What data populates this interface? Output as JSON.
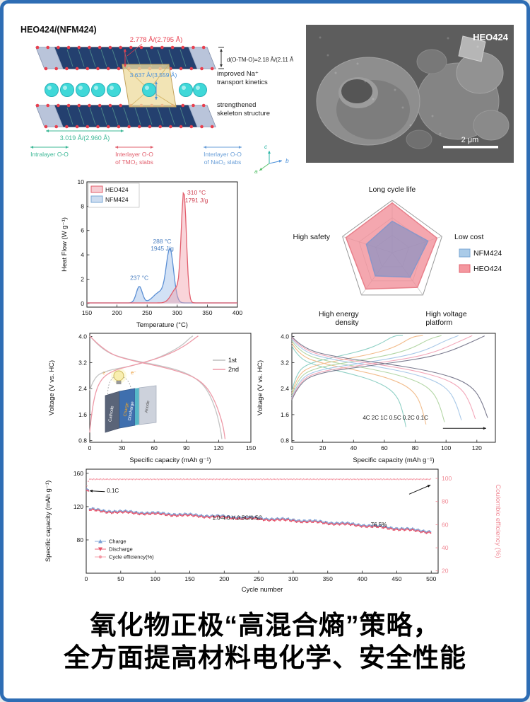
{
  "page": {
    "border_color": "#2e6db4",
    "background": "#ffffff"
  },
  "structure_panel": {
    "title": "HEO424/(NFM424)",
    "labels": {
      "interlayer_tmo2": "2.778 Å/(2.795 Å)",
      "d_otmo": "d(O-TM-O)=2.18 Å/(2.11 Å)",
      "interlayer_nao2": "3.637 Å/(3.559 Å)",
      "intralayer": "3.019 Å/(2.960 Å)"
    },
    "notes": {
      "transport1": "improved Na⁺",
      "transport2": "transport kinetics",
      "skeleton1": "strengthened",
      "skeleton2": "skeleton structure"
    },
    "legend": [
      {
        "line1": "Intralayer O-O",
        "line2": "",
        "color": "#3cb896"
      },
      {
        "line1": "Interlayer O-O",
        "line2": "of TMO₂ slabs",
        "color": "#e2606e"
      },
      {
        "line1": "Interlayer O-O",
        "line2": "of NaO₂ slabs",
        "color": "#6a9fd8"
      }
    ],
    "axes": {
      "c": "c",
      "b": "b",
      "a": "a"
    }
  },
  "sem_panel": {
    "label": "HEO424",
    "scale_bar": "2 μm"
  },
  "voltage_inset": {
    "cathode": "Cathode",
    "anode": "Anode",
    "charge": "Charge",
    "discharge": "Discharge",
    "electron": "e⁻"
  },
  "caption": {
    "line1": "氧化物正极“高混合熵”策略，",
    "line2": "全方面提高材料电化学、安全性能"
  },
  "chart_data": [
    {
      "id": "dsc",
      "type": "line",
      "xlabel": "Temperature (°C)",
      "ylabel": "Heat Flow (W g⁻¹)",
      "xlim": [
        150,
        400
      ],
      "ylim": [
        -0.3,
        10
      ],
      "xticks": [
        150,
        200,
        250,
        300,
        350,
        400
      ],
      "yticks": [
        0,
        2,
        4,
        6,
        8,
        10
      ],
      "legend": [
        {
          "label": "HEO424",
          "fill": "#f6cdd3",
          "stroke": "#e2606e"
        },
        {
          "label": "NFM424",
          "fill": "#ccdcf0",
          "stroke": "#7aa7d4"
        }
      ],
      "series": [
        {
          "name": "NFM424",
          "color": "#5b8fd4",
          "fill": "rgba(165,195,235,0.5)",
          "baseline": 0.05,
          "peaks": [
            {
              "c": 237,
              "h": 1.35,
              "w": 7
            },
            {
              "c": 272,
              "h": 0.9,
              "w": 16
            },
            {
              "c": 288,
              "h": 4.15,
              "w": 8.5
            }
          ]
        },
        {
          "name": "HEO424",
          "color": "#e2606e",
          "fill": "rgba(242,160,170,0.45)",
          "baseline": 0.05,
          "peaks": [
            {
              "c": 299,
              "h": 1.2,
              "w": 12
            },
            {
              "c": 311,
              "h": 8.75,
              "w": 6
            }
          ]
        }
      ],
      "annotations": [
        {
          "text": "237 °C",
          "x": 237,
          "y": 1.95,
          "color": "#4a7fc1",
          "size": 8.5
        },
        {
          "text": "288 °C",
          "x": 275,
          "y": 4.95,
          "color": "#4a7fc1",
          "size": 8.5
        },
        {
          "text": "1945 J/g",
          "x": 275,
          "y": 4.35,
          "color": "#4a7fc1",
          "size": 8.5
        },
        {
          "text": "310 °C",
          "x": 332,
          "y": 8.95,
          "color": "#cf4050",
          "size": 8.5
        },
        {
          "text": "1791 J/g",
          "x": 332,
          "y": 8.3,
          "color": "#cf4050",
          "size": 8.5
        }
      ]
    },
    {
      "id": "radar",
      "type": "radar",
      "levels": 3,
      "axes": [
        {
          "lines": [
            "Long cycle life"
          ]
        },
        {
          "lines": [
            "Low cost"
          ]
        },
        {
          "lines": [
            "High voltage",
            "platform"
          ]
        },
        {
          "lines": [
            "High energy",
            "density"
          ]
        },
        {
          "lines": [
            "High safety"
          ]
        }
      ],
      "series": [
        {
          "name": "HEO424",
          "values": [
            0.95,
            0.9,
            0.82,
            0.86,
            0.93
          ],
          "stroke": "#e87f8a",
          "fill": "rgba(240,138,148,0.75)"
        },
        {
          "name": "NFM424",
          "values": [
            0.6,
            0.72,
            0.58,
            0.55,
            0.52
          ],
          "stroke": "#8a96c8",
          "fill": "rgba(135,145,195,0.7)"
        }
      ],
      "legend": [
        {
          "label": "NFM424",
          "fill": "#aacbe8",
          "stroke": "#7aa7d4"
        },
        {
          "label": "HEO424",
          "fill": "#f4979f",
          "stroke": "#e2606e"
        }
      ]
    },
    {
      "id": "voltage12",
      "type": "line",
      "xlabel": "Specific capacity (mAh g⁻¹)",
      "ylabel": "Voltage (V vs. HC)",
      "xlim": [
        0,
        150
      ],
      "ylim": [
        0.75,
        4.1
      ],
      "xticks": [
        0,
        30,
        60,
        90,
        120,
        150
      ],
      "yticks": [
        0.8,
        1.6,
        2.4,
        3.2,
        4.0
      ],
      "ytick_labels": [
        "0.8",
        "1.6",
        "2.4",
        "3.2",
        "4.0"
      ],
      "legend_lines": [
        {
          "label": "1st",
          "color": "#bdbdbd"
        },
        {
          "label": "2nd",
          "color": "#ee9aa8"
        }
      ],
      "series": [
        {
          "name": "1st charge",
          "color": "#c4c4c4",
          "smooth": true,
          "points": [
            [
              0,
              2.35
            ],
            [
              4,
              2.75
            ],
            [
              15,
              2.95
            ],
            [
              40,
              3.1
            ],
            [
              65,
              3.35
            ],
            [
              85,
              3.7
            ],
            [
              93,
              3.95
            ],
            [
              96,
              4.02
            ]
          ]
        },
        {
          "name": "1st discharge",
          "color": "#c4c4c4",
          "smooth": true,
          "points": [
            [
              0,
              4.02
            ],
            [
              12,
              3.55
            ],
            [
              35,
              3.3
            ],
            [
              60,
              3.15
            ],
            [
              85,
              2.95
            ],
            [
              100,
              2.7
            ],
            [
              110,
              2.35
            ],
            [
              118,
              1.7
            ],
            [
              122,
              1.1
            ],
            [
              123,
              0.85
            ]
          ]
        },
        {
          "name": "2nd charge",
          "color": "#ee9aa8",
          "smooth": true,
          "points": [
            [
              0,
              1.05
            ],
            [
              2,
              1.8
            ],
            [
              8,
              2.6
            ],
            [
              20,
              2.95
            ],
            [
              45,
              3.15
            ],
            [
              70,
              3.4
            ],
            [
              88,
              3.7
            ],
            [
              98,
              3.95
            ],
            [
              101,
              4.02
            ]
          ]
        },
        {
          "name": "2nd discharge",
          "color": "#ee9aa8",
          "smooth": true,
          "points": [
            [
              0,
              4.02
            ],
            [
              15,
              3.5
            ],
            [
              40,
              3.25
            ],
            [
              70,
              3.05
            ],
            [
              95,
              2.8
            ],
            [
              108,
              2.5
            ],
            [
              117,
              2.0
            ],
            [
              124,
              1.3
            ],
            [
              126,
              0.85
            ]
          ]
        }
      ]
    },
    {
      "id": "rate",
      "type": "line",
      "xlabel": "Specific capacity (mAh g⁻¹)",
      "ylabel": "Voltage (V vs. HC)",
      "xlim": [
        0,
        132
      ],
      "ylim": [
        0.75,
        4.1
      ],
      "xticks": [
        0,
        20,
        40,
        60,
        80,
        100,
        120
      ],
      "yticks": [
        0.8,
        1.6,
        2.4,
        3.2,
        4.0
      ],
      "ytick_labels": [
        "0.8",
        "1.6",
        "2.4",
        "3.2",
        "4.0"
      ],
      "curve_templates": {
        "charge": [
          [
            0,
            2.05
          ],
          [
            0.04,
            2.6
          ],
          [
            0.15,
            2.9
          ],
          [
            0.4,
            3.1
          ],
          [
            0.65,
            3.3
          ],
          [
            0.8,
            3.5
          ],
          [
            0.92,
            3.8
          ],
          [
            1,
            4.02
          ]
        ],
        "discharge": [
          [
            0,
            4.0
          ],
          [
            0.06,
            3.6
          ],
          [
            0.25,
            3.35
          ],
          [
            0.5,
            3.15
          ],
          [
            0.7,
            2.95
          ],
          [
            0.85,
            2.7
          ],
          [
            0.93,
            2.4
          ],
          [
            0.97,
            2.0
          ],
          [
            1,
            1.5
          ]
        ]
      },
      "rates": [
        {
          "name": "4C",
          "color": "#8fd0c5",
          "discharge_cap": 74,
          "charge_cap": 72,
          "voff": 0.28
        },
        {
          "name": "2C",
          "color": "#f2bd8d",
          "discharge_cap": 87,
          "charge_cap": 85,
          "voff": 0.2
        },
        {
          "name": "1C",
          "color": "#b3d6a5",
          "discharge_cap": 99,
          "charge_cap": 97,
          "voff": 0.13
        },
        {
          "name": "0.5C",
          "color": "#a9c9e8",
          "discharge_cap": 110,
          "charge_cap": 108,
          "voff": 0.07
        },
        {
          "name": "0.2C",
          "color": "#f3a8ba",
          "discharge_cap": 119,
          "charge_cap": 117,
          "voff": 0.03
        },
        {
          "name": "0.1C",
          "color": "#7c7c90",
          "discharge_cap": 127,
          "charge_cap": 125,
          "voff": 0
        }
      ],
      "annotations": [
        {
          "text": "4C 2C 1C 0.5C 0.2C 0.1C",
          "x": 46,
          "y": 1.45,
          "color": "#222",
          "size": 8,
          "anchor": "start"
        }
      ],
      "arrows": [
        {
          "x1": 98,
          "y1": 1.18,
          "x2": 126,
          "y2": 1.18,
          "color": "#222"
        }
      ]
    },
    {
      "id": "cycling",
      "type": "cycling",
      "xlabel": "Cycle number",
      "ylabel": "Specific capacity (mAh g⁻¹)",
      "y2label": "Coulombic efficiency (%)",
      "xlim": [
        0,
        510
      ],
      "ylim": [
        40,
        165
      ],
      "xticks": [
        0,
        50,
        100,
        150,
        200,
        250,
        300,
        350,
        400,
        450,
        500
      ],
      "yticks": [
        80,
        120,
        160
      ],
      "y2lim": [
        18,
        108
      ],
      "y2ticks": [
        20,
        40,
        60,
        80,
        100
      ],
      "y2color": "#f08a96",
      "capacity_control": [
        [
          1,
          139
        ],
        [
          3,
          138
        ],
        [
          5,
          116
        ],
        [
          25,
          114
        ],
        [
          50,
          113
        ],
        [
          75,
          112
        ],
        [
          100,
          111
        ],
        [
          150,
          109
        ],
        [
          200,
          107
        ],
        [
          250,
          105
        ],
        [
          300,
          103
        ],
        [
          350,
          100
        ],
        [
          400,
          97
        ],
        [
          450,
          93
        ],
        [
          500,
          89
        ]
      ],
      "ce_value": 99.3,
      "series_style": {
        "charge_color": "#7aa0d4",
        "discharge_color": "#e8536a",
        "ce_color": "#f49aa6"
      },
      "legend": [
        {
          "label": "Charge",
          "color": "#7aa0d4",
          "marker": "tri-up"
        },
        {
          "label": "Discharge",
          "color": "#e8536a",
          "marker": "tri-down"
        },
        {
          "label": "Cycle efficiency(%)",
          "color": "#f49aa6",
          "marker": "circle"
        }
      ],
      "annotations": [
        {
          "text": "0.1C",
          "x": 30,
          "y": 137,
          "color": "#111",
          "size": 8,
          "anchor": "start"
        },
        {
          "text": "1.0-4.0 V 0.5C/0.5C",
          "x": 219,
          "y": 104,
          "color": "#111",
          "size": 8,
          "anchor": "middle"
        },
        {
          "text": "76.5%",
          "x": 424,
          "y": 96,
          "color": "#111",
          "size": 8,
          "anchor": "middle"
        }
      ],
      "arrows": [
        {
          "x1": 27,
          "y1": 138,
          "x2": 5,
          "y2": 139,
          "color": "#111"
        },
        {
          "x1": 468,
          "y1": 135,
          "x2": 499,
          "y2": 146,
          "color": "#111"
        }
      ]
    }
  ]
}
